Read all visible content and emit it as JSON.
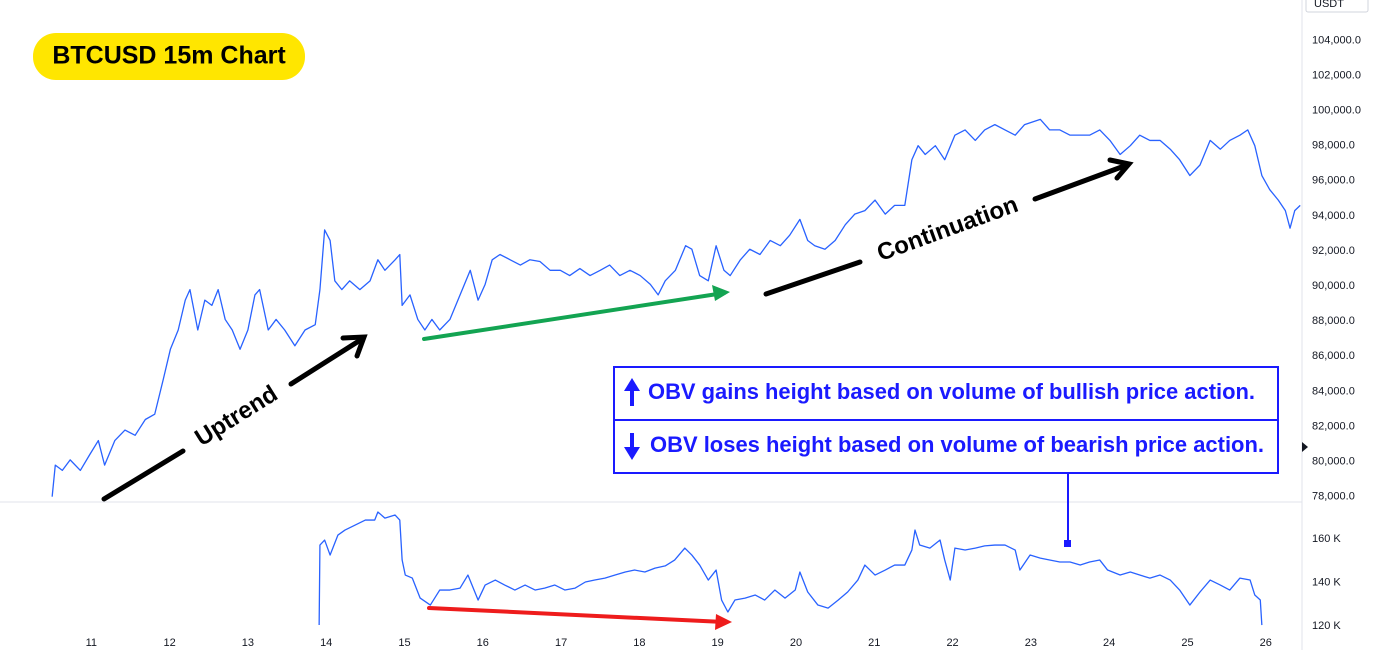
{
  "chart_data": [
    {
      "type": "line",
      "title": "BTCUSD 15m Chart",
      "y_unit": "USDT",
      "annotations": [
        "Uptrend",
        "Continuation"
      ],
      "xlim": [
        10,
        26.45
      ],
      "ylim": [
        77700,
        106300
      ],
      "yticks": [
        {
          "value": 78000,
          "label": "78,000.0"
        },
        {
          "value": 80000,
          "label": "80,000.0"
        },
        {
          "value": 82000,
          "label": "82,000.0"
        },
        {
          "value": 84000,
          "label": "84,000.0"
        },
        {
          "value": 86000,
          "label": "86,000.0"
        },
        {
          "value": 88000,
          "label": "88,000.0"
        },
        {
          "value": 90000,
          "label": "90,000.0"
        },
        {
          "value": 92000,
          "label": "92,000.0"
        },
        {
          "value": 94000,
          "label": "94,000.0"
        },
        {
          "value": 96000,
          "label": "96,000.0"
        },
        {
          "value": 98000,
          "label": "98,000.0"
        },
        {
          "value": 100000,
          "label": "100,000.0"
        },
        {
          "value": 102000,
          "label": "102,000.0"
        },
        {
          "value": 104000,
          "label": "104,000.0"
        }
      ],
      "grid": false,
      "color": "#2962ff",
      "x": [
        10.5,
        10.54,
        10.63,
        10.73,
        10.86,
        10.98,
        11.09,
        11.17,
        11.3,
        11.43,
        11.56,
        11.69,
        11.81,
        11.92,
        12.01,
        12.11,
        12.2,
        12.26,
        12.36,
        12.45,
        12.54,
        12.62,
        12.71,
        12.8,
        12.9,
        13.0,
        13.09,
        13.15,
        13.26,
        13.36,
        13.47,
        13.6,
        13.73,
        13.86,
        13.92,
        13.98,
        14.05,
        14.11,
        14.2,
        14.3,
        14.43,
        14.56,
        14.66,
        14.75,
        14.88,
        14.94,
        14.97,
        15.07,
        15.17,
        15.26,
        15.35,
        15.45,
        15.58,
        15.71,
        15.84,
        15.94,
        16.03,
        16.12,
        16.22,
        16.35,
        16.48,
        16.6,
        16.73,
        16.86,
        16.99,
        17.11,
        17.24,
        17.37,
        17.5,
        17.62,
        17.75,
        17.88,
        18.01,
        18.14,
        18.24,
        18.33,
        18.46,
        18.59,
        18.67,
        18.77,
        18.88,
        18.98,
        19.08,
        19.16,
        19.29,
        19.41,
        19.54,
        19.67,
        19.8,
        19.92,
        20.05,
        20.15,
        20.24,
        20.37,
        20.5,
        20.63,
        20.75,
        20.88,
        21.01,
        21.14,
        21.26,
        21.39,
        21.48,
        21.56,
        21.65,
        21.78,
        21.9,
        22.03,
        22.16,
        22.29,
        22.41,
        22.54,
        22.67,
        22.8,
        22.92,
        23.12,
        23.24,
        23.37,
        23.5,
        23.63,
        23.75,
        23.88,
        24.01,
        24.14,
        24.27,
        24.39,
        24.52,
        24.65,
        24.78,
        24.9,
        25.03,
        25.16,
        25.29,
        25.42,
        25.54,
        25.67,
        25.77,
        25.86,
        25.95,
        26.05,
        26.16,
        26.25,
        26.31,
        26.37,
        26.44
      ],
      "values": [
        78000,
        79800,
        79500,
        80100,
        79500,
        80400,
        81200,
        79800,
        81200,
        81800,
        81500,
        82400,
        82700,
        84700,
        86400,
        87500,
        89200,
        89800,
        87500,
        89200,
        88900,
        89800,
        88100,
        87500,
        86400,
        87500,
        89500,
        89800,
        87500,
        88100,
        87500,
        86600,
        87500,
        87800,
        89800,
        93200,
        92600,
        90300,
        89800,
        90300,
        89800,
        90300,
        91500,
        90900,
        91500,
        91800,
        88900,
        89500,
        88100,
        87500,
        88100,
        87500,
        88100,
        89500,
        90900,
        89200,
        90100,
        91500,
        91800,
        91500,
        91200,
        91500,
        91400,
        90900,
        90900,
        90600,
        91000,
        90600,
        90900,
        91200,
        90600,
        90900,
        90600,
        90100,
        89500,
        90300,
        90900,
        92300,
        92100,
        90600,
        90300,
        92300,
        90900,
        90600,
        91500,
        92100,
        91800,
        92600,
        92300,
        92900,
        93800,
        92600,
        92300,
        92100,
        92600,
        93500,
        94100,
        94300,
        94900,
        94100,
        94600,
        94600,
        97200,
        98000,
        97500,
        98000,
        97200,
        98600,
        98900,
        98300,
        98900,
        99200,
        98900,
        98600,
        99200,
        99500,
        98900,
        98900,
        98600,
        98600,
        98600,
        98900,
        98300,
        97500,
        98000,
        98600,
        98300,
        98300,
        97800,
        97200,
        96300,
        96900,
        98300,
        97800,
        98300,
        98600,
        98900,
        98000,
        96300,
        95500,
        94900,
        94300,
        93300,
        94300,
        94600
      ]
    },
    {
      "type": "line",
      "annotations": [
        "OBV gains height based on volume of bullish price action.",
        "OBV loses height based on volume of bearish price action."
      ],
      "xlim": [
        10,
        26.45
      ],
      "xticks": [
        11,
        12,
        13,
        14,
        15,
        16,
        17,
        18,
        19,
        20,
        21,
        22,
        23,
        24,
        25,
        26
      ],
      "ylim": [
        117200,
        177000
      ],
      "yticks": [
        {
          "value": 120000,
          "label": "120 K"
        },
        {
          "value": 140000,
          "label": "140 K"
        },
        {
          "value": 160000,
          "label": "160 K"
        }
      ],
      "grid": false,
      "color": "#2962ff",
      "x": [
        13.91,
        13.92,
        13.98,
        14.05,
        14.15,
        14.24,
        14.37,
        14.5,
        14.62,
        14.66,
        14.75,
        14.88,
        14.94,
        14.97,
        15.01,
        15.1,
        15.2,
        15.33,
        15.45,
        15.58,
        15.71,
        15.81,
        15.94,
        16.03,
        16.16,
        16.28,
        16.41,
        16.54,
        16.67,
        16.79,
        16.92,
        17.05,
        17.18,
        17.31,
        17.43,
        17.56,
        17.69,
        17.82,
        17.94,
        18.07,
        18.2,
        18.33,
        18.45,
        18.58,
        18.67,
        18.77,
        18.88,
        18.98,
        19.05,
        19.13,
        19.22,
        19.35,
        19.48,
        19.6,
        19.73,
        19.86,
        19.99,
        20.05,
        20.15,
        20.28,
        20.41,
        20.54,
        20.66,
        20.79,
        20.88,
        21.01,
        21.14,
        21.26,
        21.39,
        21.48,
        21.52,
        21.58,
        21.71,
        21.84,
        21.9,
        21.97,
        22.03,
        22.16,
        22.29,
        22.41,
        22.54,
        22.67,
        22.8,
        22.86,
        22.99,
        23.12,
        23.24,
        23.37,
        23.5,
        23.63,
        23.75,
        23.88,
        23.98,
        24.14,
        24.27,
        24.39,
        24.52,
        24.65,
        24.78,
        24.9,
        25.03,
        25.16,
        25.29,
        25.42,
        25.54,
        25.67,
        25.8,
        25.86,
        25.93,
        25.95
      ],
      "values": [
        120400,
        157200,
        159500,
        152600,
        161800,
        164100,
        166400,
        168700,
        168700,
        172400,
        169600,
        171000,
        168700,
        150300,
        143400,
        142000,
        132800,
        129600,
        136500,
        136500,
        137400,
        143400,
        131900,
        138800,
        141100,
        138800,
        136500,
        138800,
        136500,
        137400,
        138800,
        136500,
        137400,
        140200,
        141100,
        142000,
        143400,
        144800,
        145700,
        144800,
        146600,
        147600,
        150300,
        155800,
        152600,
        148000,
        141100,
        145700,
        131900,
        126400,
        131900,
        132800,
        134200,
        131900,
        136500,
        132800,
        136500,
        144800,
        135600,
        129600,
        128200,
        131900,
        135600,
        141100,
        148000,
        143400,
        145700,
        148000,
        148000,
        154900,
        164100,
        157200,
        155800,
        159500,
        150300,
        141100,
        155800,
        154900,
        155800,
        156800,
        157200,
        157200,
        154900,
        145700,
        152600,
        151200,
        150300,
        149400,
        149400,
        148000,
        149400,
        150300,
        145700,
        143400,
        144800,
        143400,
        142000,
        143400,
        141100,
        136500,
        129600,
        135600,
        141100,
        138800,
        136500,
        142000,
        141100,
        134200,
        131900,
        120400
      ]
    }
  ]
}
